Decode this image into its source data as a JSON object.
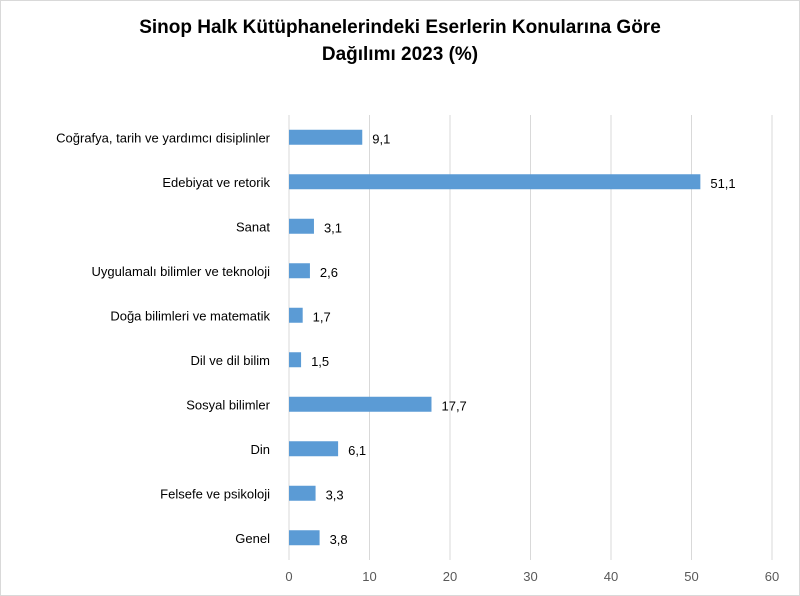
{
  "chart_data": {
    "type": "bar",
    "orientation": "horizontal",
    "title_line1": "Sinop Halk Kütüphanelerindeki Eserlerin Konularına Göre",
    "title_line2": "Dağılımı 2023 (%)",
    "categories": [
      "Coğrafya, tarih ve yardımcı disiplinler",
      "Edebiyat ve retorik",
      "Sanat",
      "Uygulamalı bilimler ve teknoloji",
      "Doğa bilimleri ve matematik",
      "Dil ve dil bilim",
      "Sosyal bilimler",
      "Din",
      "Felsefe ve psikoloji",
      "Genel"
    ],
    "values": [
      9.1,
      51.1,
      3.1,
      2.6,
      1.7,
      1.5,
      17.7,
      6.1,
      3.3,
      3.8
    ],
    "value_labels": [
      "9,1",
      "51,1",
      "3,1",
      "2,6",
      "1,7",
      "1,5",
      "17,7",
      "6,1",
      "3,3",
      "3,8"
    ],
    "xlim": [
      0,
      60
    ],
    "xticks": [
      "0",
      "10",
      "20",
      "30",
      "40",
      "50",
      "60"
    ],
    "grid": true,
    "bar_color": "#5b9bd5",
    "grid_color": "#d9d9d9"
  }
}
